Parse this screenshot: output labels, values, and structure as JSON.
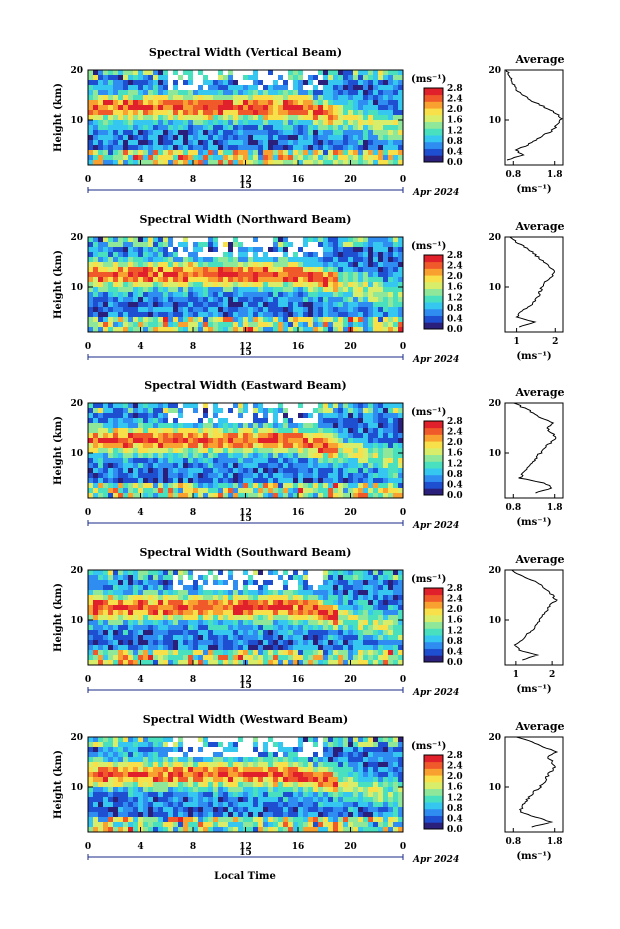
{
  "figure": {
    "xlabel": "Local Time",
    "date_label": "Apr 2024",
    "day_label": "15",
    "ylabel": "Height (km)",
    "unit_label": "(ms⁻¹)",
    "average_title": "Average",
    "colormap": [
      "#2a1f7a",
      "#1f4fd1",
      "#2f8cf0",
      "#35c7f0",
      "#49e0c0",
      "#8fe89a",
      "#d8ee6a",
      "#f8e04a",
      "#f8a030",
      "#f05a2a",
      "#e0202a"
    ]
  },
  "chart_data": [
    {
      "type": "heatmap",
      "title": "Spectral Width (Vertical Beam)",
      "x_ticks": [
        "0",
        "4",
        "8",
        "12",
        "16",
        "20",
        "0"
      ],
      "y_ticks": [
        "20",
        "10"
      ],
      "xlim": [
        0,
        24
      ],
      "ylim": [
        1,
        20
      ],
      "colorbar_ticks": [
        "2.8",
        "2.4",
        "2.0",
        "1.6",
        "1.2",
        "0.8",
        "0.4",
        "0.0"
      ],
      "colorbar_range": [
        0,
        2.8
      ],
      "average_profile": {
        "x_ticks": [
          "0.8",
          "1.8"
        ],
        "xlim": [
          0.6,
          2.0
        ],
        "height": [
          2,
          3,
          4,
          5,
          6,
          7,
          8,
          9,
          10,
          11,
          12,
          13,
          14,
          15,
          16,
          17,
          18,
          19,
          20
        ],
        "width": [
          0.65,
          1.05,
          0.85,
          1.15,
          1.35,
          1.55,
          1.75,
          1.85,
          1.95,
          1.9,
          1.7,
          1.45,
          1.2,
          1.05,
          0.9,
          0.8,
          0.75,
          0.7,
          0.65
        ]
      }
    },
    {
      "type": "heatmap",
      "title": "Spectral Width (Northward Beam)",
      "x_ticks": [
        "0",
        "4",
        "8",
        "12",
        "16",
        "20",
        "0"
      ],
      "y_ticks": [
        "20",
        "10"
      ],
      "xlim": [
        0,
        24
      ],
      "ylim": [
        1,
        20
      ],
      "colorbar_ticks": [
        "2.8",
        "2.4",
        "2.0",
        "1.6",
        "1.2",
        "0.8",
        "0.4",
        "0.0"
      ],
      "colorbar_range": [
        0,
        2.8
      ],
      "average_profile": {
        "x_ticks": [
          "1",
          "2"
        ],
        "xlim": [
          0.7,
          2.2
        ],
        "height": [
          2,
          3,
          4,
          5,
          6,
          7,
          8,
          9,
          10,
          11,
          12,
          13,
          14,
          15,
          16,
          17,
          18,
          19,
          20
        ],
        "width": [
          1.05,
          1.45,
          1.0,
          1.1,
          1.3,
          1.45,
          1.55,
          1.6,
          1.65,
          1.75,
          1.9,
          2.0,
          1.85,
          1.7,
          1.55,
          1.4,
          1.2,
          1.0,
          0.85
        ]
      }
    },
    {
      "type": "heatmap",
      "title": "Spectral Width (Eastward Beam)",
      "x_ticks": [
        "0",
        "4",
        "8",
        "12",
        "16",
        "20",
        "0"
      ],
      "y_ticks": [
        "20",
        "10"
      ],
      "xlim": [
        0,
        24
      ],
      "ylim": [
        1,
        20
      ],
      "colorbar_ticks": [
        "2.8",
        "2.4",
        "2.0",
        "1.6",
        "1.2",
        "0.8",
        "0.4",
        "0.0"
      ],
      "colorbar_range": [
        0,
        2.8
      ],
      "average_profile": {
        "x_ticks": [
          "0.8",
          "1.8"
        ],
        "xlim": [
          0.6,
          2.0
        ],
        "height": [
          2,
          3,
          4,
          5,
          6,
          7,
          8,
          9,
          10,
          11,
          12,
          13,
          14,
          15,
          16,
          17,
          18,
          19,
          20
        ],
        "width": [
          1.3,
          1.75,
          1.55,
          0.95,
          1.05,
          1.15,
          1.25,
          1.35,
          1.45,
          1.55,
          1.7,
          1.85,
          1.75,
          1.6,
          1.75,
          1.45,
          1.3,
          1.05,
          0.85
        ]
      }
    },
    {
      "type": "heatmap",
      "title": "Spectral Width (Southward Beam)",
      "x_ticks": [
        "0",
        "4",
        "8",
        "12",
        "16",
        "20",
        "0"
      ],
      "y_ticks": [
        "20",
        "10"
      ],
      "xlim": [
        0,
        24
      ],
      "ylim": [
        1,
        20
      ],
      "colorbar_ticks": [
        "2.8",
        "2.4",
        "2.0",
        "1.6",
        "1.2",
        "0.8",
        "0.4",
        "0.0"
      ],
      "colorbar_range": [
        0,
        2.8
      ],
      "average_profile": {
        "x_ticks": [
          "1",
          "2"
        ],
        "xlim": [
          0.7,
          2.3
        ],
        "height": [
          2,
          3,
          4,
          5,
          6,
          7,
          8,
          9,
          10,
          11,
          12,
          13,
          14,
          15,
          16,
          17,
          18,
          19,
          20
        ],
        "width": [
          1.2,
          1.6,
          1.1,
          1.0,
          1.15,
          1.3,
          1.45,
          1.55,
          1.65,
          1.75,
          1.85,
          1.95,
          2.1,
          2.0,
          1.85,
          1.7,
          1.45,
          1.1,
          0.85
        ]
      }
    },
    {
      "type": "heatmap",
      "title": "Spectral Width (Westward Beam)",
      "x_ticks": [
        "0",
        "4",
        "8",
        "12",
        "16",
        "20",
        "0"
      ],
      "y_ticks": [
        "20",
        "10"
      ],
      "xlim": [
        0,
        24
      ],
      "ylim": [
        1,
        20
      ],
      "colorbar_ticks": [
        "2.8",
        "2.4",
        "2.0",
        "1.6",
        "1.2",
        "0.8",
        "0.4",
        "0.0"
      ],
      "colorbar_range": [
        0,
        2.8
      ],
      "average_profile": {
        "x_ticks": [
          "0.8",
          "1.8"
        ],
        "xlim": [
          0.6,
          2.0
        ],
        "height": [
          2,
          3,
          4,
          5,
          6,
          7,
          8,
          9,
          10,
          11,
          12,
          13,
          14,
          15,
          16,
          17,
          18,
          19,
          20
        ],
        "width": [
          1.25,
          1.7,
          1.35,
          0.95,
          1.0,
          1.1,
          1.2,
          1.3,
          1.45,
          1.55,
          1.6,
          1.7,
          1.8,
          1.75,
          1.65,
          1.85,
          1.55,
          1.25,
          0.85
        ]
      }
    }
  ]
}
